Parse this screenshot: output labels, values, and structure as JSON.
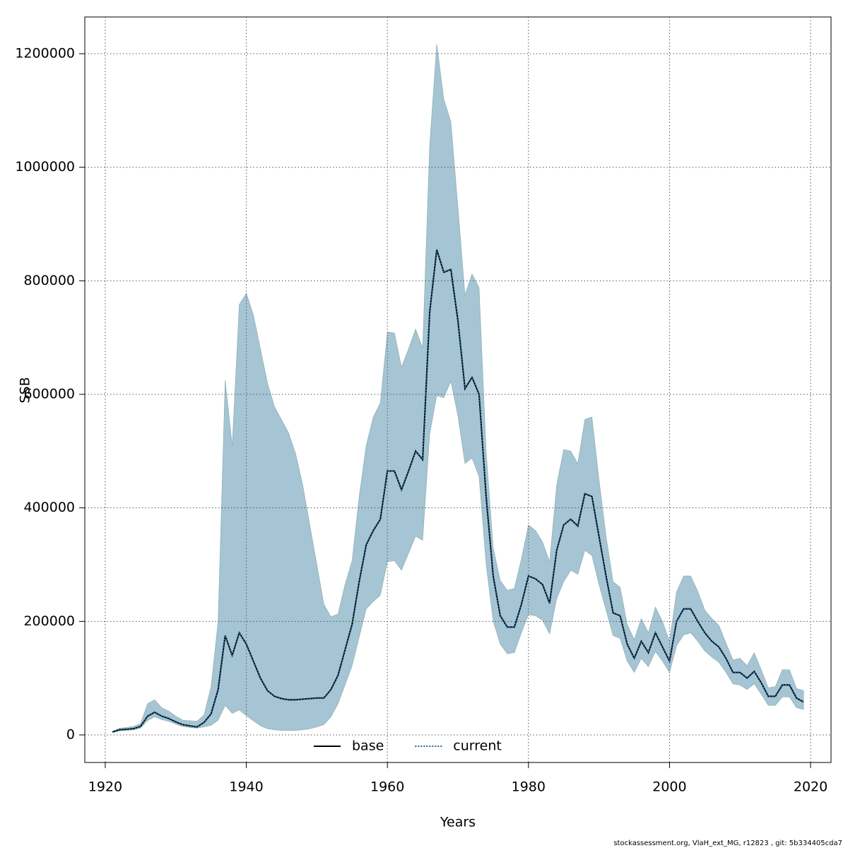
{
  "chart_data": {
    "type": "line",
    "xlabel": "Years",
    "ylabel": "SSB",
    "footer": "stockassessment.org, VlaH_ext_MG, r12823 , git: 5b334405cda7",
    "xlim": [
      1917.1,
      2022.9
    ],
    "ylim": [
      -48550,
      1264800
    ],
    "xticks": [
      1920,
      1940,
      1960,
      1980,
      2000,
      2020
    ],
    "yticks": [
      0,
      200000,
      400000,
      600000,
      800000,
      1000000,
      1200000
    ],
    "grid": true,
    "legend": "bottom",
    "x": [
      1921,
      1922,
      1923,
      1924,
      1925,
      1926,
      1927,
      1928,
      1929,
      1930,
      1931,
      1932,
      1933,
      1934,
      1935,
      1936,
      1937,
      1938,
      1939,
      1940,
      1941,
      1942,
      1943,
      1944,
      1945,
      1946,
      1947,
      1948,
      1949,
      1950,
      1951,
      1952,
      1953,
      1954,
      1955,
      1956,
      1957,
      1958,
      1959,
      1960,
      1961,
      1962,
      1963,
      1964,
      1965,
      1966,
      1967,
      1968,
      1969,
      1970,
      1971,
      1972,
      1973,
      1974,
      1975,
      1976,
      1977,
      1978,
      1979,
      1980,
      1981,
      1982,
      1983,
      1984,
      1985,
      1986,
      1987,
      1988,
      1989,
      1990,
      1991,
      1992,
      1993,
      1994,
      1995,
      1996,
      1997,
      1998,
      1999,
      2000,
      2001,
      2002,
      2003,
      2004,
      2005,
      2006,
      2007,
      2008,
      2009,
      2010,
      2011,
      2012,
      2013,
      2014,
      2015,
      2016,
      2017,
      2018,
      2019
    ],
    "band": {
      "color": "#a5c4d4",
      "lower": [
        4000,
        7000,
        8000,
        9000,
        12000,
        25000,
        32000,
        27000,
        24000,
        19000,
        15000,
        13000,
        12000,
        14000,
        17000,
        26000,
        52000,
        38000,
        44000,
        34000,
        25000,
        16000,
        11000,
        9000,
        8000,
        8000,
        8000,
        9000,
        11000,
        14000,
        18000,
        32000,
        55000,
        88000,
        122000,
        172000,
        222000,
        235000,
        246000,
        305000,
        307000,
        290000,
        320000,
        350000,
        343000,
        530000,
        598000,
        594000,
        623000,
        562000,
        478000,
        488000,
        455000,
        300000,
        200000,
        160000,
        143000,
        145000,
        180000,
        212000,
        210000,
        202000,
        178000,
        240000,
        270000,
        290000,
        283000,
        325000,
        316000,
        265000,
        220000,
        175000,
        170000,
        130000,
        110000,
        135000,
        120000,
        147000,
        130000,
        110000,
        157000,
        176000,
        180000,
        165000,
        148000,
        137000,
        128000,
        110000,
        90000,
        88000,
        80000,
        90000,
        72000,
        52000,
        52000,
        67000,
        67000,
        48000,
        45000
      ],
      "upper": [
        6000,
        12000,
        13000,
        15000,
        20000,
        55000,
        62000,
        48000,
        42000,
        33000,
        26000,
        25000,
        24000,
        35000,
        85000,
        200000,
        625000,
        510000,
        758000,
        778000,
        740000,
        680000,
        620000,
        578000,
        555000,
        532000,
        495000,
        440000,
        370000,
        300000,
        230000,
        208000,
        213000,
        265000,
        307000,
        420000,
        510000,
        560000,
        585000,
        710000,
        708000,
        648000,
        680000,
        715000,
        682000,
        1040000,
        1217000,
        1120000,
        1080000,
        930000,
        775000,
        812000,
        788000,
        500000,
        330000,
        272000,
        255000,
        258000,
        310000,
        370000,
        360000,
        340000,
        305000,
        440000,
        503000,
        500000,
        478000,
        556000,
        560000,
        450000,
        350000,
        270000,
        260000,
        195000,
        168000,
        205000,
        180000,
        225000,
        200000,
        165000,
        252000,
        280000,
        280000,
        253000,
        220000,
        205000,
        193000,
        162000,
        132000,
        135000,
        122000,
        145000,
        115000,
        83000,
        85000,
        115000,
        115000,
        82000,
        78000
      ]
    },
    "series": [
      {
        "name": "base",
        "color": "#000000",
        "dash": "solid",
        "values": [
          5000,
          9000,
          10000,
          11000,
          15000,
          33000,
          40000,
          33000,
          29000,
          23000,
          18000,
          16000,
          14000,
          22000,
          37000,
          80000,
          175000,
          140000,
          180000,
          160000,
          130000,
          100000,
          78000,
          68000,
          64000,
          62000,
          62000,
          63000,
          64000,
          65000,
          65000,
          80000,
          105000,
          150000,
          195000,
          270000,
          335000,
          360000,
          380000,
          465000,
          465000,
          432000,
          465000,
          500000,
          485000,
          745000,
          855000,
          815000,
          820000,
          730000,
          610000,
          630000,
          600000,
          420000,
          280000,
          210000,
          190000,
          190000,
          230000,
          280000,
          275000,
          265000,
          232000,
          325000,
          370000,
          380000,
          368000,
          425000,
          420000,
          350000,
          280000,
          215000,
          210000,
          160000,
          135000,
          165000,
          145000,
          180000,
          155000,
          130000,
          200000,
          222000,
          222000,
          200000,
          180000,
          165000,
          155000,
          135000,
          110000,
          110000,
          100000,
          112000,
          92000,
          68000,
          68000,
          88000,
          88000,
          65000,
          58000
        ]
      },
      {
        "name": "current",
        "color": "#1f5f8b",
        "dash": "dotted",
        "values": [
          5000,
          9000,
          10000,
          11000,
          15000,
          33000,
          40000,
          33000,
          29000,
          23000,
          18000,
          16000,
          14000,
          22000,
          37000,
          80000,
          175000,
          140000,
          180000,
          160000,
          130000,
          100000,
          78000,
          68000,
          64000,
          62000,
          62000,
          63000,
          64000,
          65000,
          65000,
          80000,
          105000,
          150000,
          195000,
          270000,
          335000,
          360000,
          380000,
          465000,
          465000,
          432000,
          465000,
          500000,
          485000,
          745000,
          855000,
          815000,
          820000,
          730000,
          610000,
          630000,
          600000,
          420000,
          280000,
          210000,
          190000,
          190000,
          230000,
          280000,
          275000,
          265000,
          232000,
          325000,
          370000,
          380000,
          368000,
          425000,
          420000,
          350000,
          280000,
          215000,
          210000,
          160000,
          135000,
          165000,
          145000,
          180000,
          155000,
          130000,
          200000,
          222000,
          222000,
          200000,
          180000,
          165000,
          155000,
          135000,
          110000,
          110000,
          100000,
          112000,
          92000,
          68000,
          68000,
          88000,
          88000,
          65000,
          58000
        ]
      }
    ]
  }
}
